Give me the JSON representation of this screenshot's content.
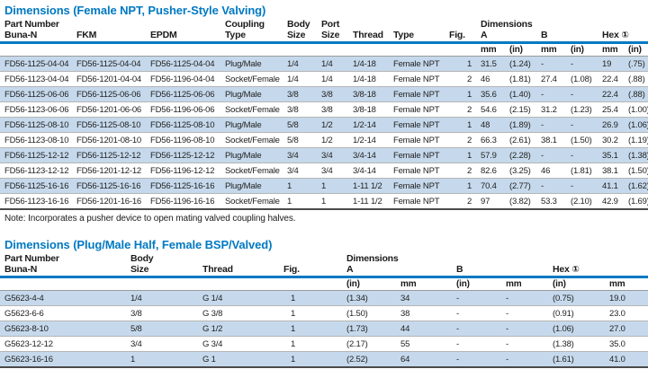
{
  "colors": {
    "accent": "#0079C2",
    "row_stripe": "#C6D9EC"
  },
  "table1": {
    "title": "Dimensions (Female NPT, Pusher-Style Valving)",
    "header_line1": [
      "Part Number",
      "",
      "",
      "Coupling",
      "Body",
      "Port",
      "",
      "",
      "",
      "Dimensions",
      "",
      "",
      "",
      "",
      ""
    ],
    "header_line2": [
      "Buna-N",
      "FKM",
      "EPDM",
      "Type",
      "Size",
      "Size",
      "Thread",
      "Type",
      "Fig.",
      "A",
      "",
      "B",
      "",
      "Hex",
      ""
    ],
    "hex_marker": "①",
    "units": [
      "mm",
      "(in)",
      "mm",
      "(in)",
      "mm",
      "(in)"
    ],
    "rows": [
      [
        "FD56-1125-04-04",
        "FD56-1125-04-04",
        "FD56-1125-04-04",
        "Plug/Male",
        "1/4",
        "1/4",
        "1/4-18",
        "Female NPT",
        "1",
        "31.5",
        "(1.24)",
        "-",
        "-",
        "19",
        "(.75)"
      ],
      [
        "FD56-1123-04-04",
        "FD56-1201-04-04",
        "FD56-1196-04-04",
        "Socket/Female",
        "1/4",
        "1/4",
        "1/4-18",
        "Female NPT",
        "2",
        "46",
        "(1.81)",
        "27.4",
        "(1.08)",
        "22.4",
        "(.88)"
      ],
      [
        "FD56-1125-06-06",
        "FD56-1125-06-06",
        "FD56-1125-06-06",
        "Plug/Male",
        "3/8",
        "3/8",
        "3/8-18",
        "Female NPT",
        "1",
        "35.6",
        "(1.40)",
        "-",
        "-",
        "22.4",
        "(.88)"
      ],
      [
        "FD56-1123-06-06",
        "FD56-1201-06-06",
        "FD56-1196-06-06",
        "Socket/Female",
        "3/8",
        "3/8",
        "3/8-18",
        "Female NPT",
        "2",
        "54.6",
        "(2.15)",
        "31.2",
        "(1.23)",
        "25.4",
        "(1.00)"
      ],
      [
        "FD56-1125-08-10",
        "FD56-1125-08-10",
        "FD56-1125-08-10",
        "Plug/Male",
        "5/8",
        "1/2",
        "1/2-14",
        "Female NPT",
        "1",
        "48",
        "(1.89)",
        "-",
        "-",
        "26.9",
        "(1.06)"
      ],
      [
        "FD56-1123-08-10",
        "FD56-1201-08-10",
        "FD56-1196-08-10",
        "Socket/Female",
        "5/8",
        "1/2",
        "1/2-14",
        "Female NPT",
        "2",
        "66.3",
        "(2.61)",
        "38.1",
        "(1.50)",
        "30.2",
        "(1.19)"
      ],
      [
        "FD56-1125-12-12",
        "FD56-1125-12-12",
        "FD56-1125-12-12",
        "Plug/Male",
        "3/4",
        "3/4",
        "3/4-14",
        "Female NPT",
        "1",
        "57.9",
        "(2.28)",
        "-",
        "-",
        "35.1",
        "(1.38)"
      ],
      [
        "FD56-1123-12-12",
        "FD56-1201-12-12",
        "FD56-1196-12-12",
        "Socket/Female",
        "3/4",
        "3/4",
        "3/4-14",
        "Female NPT",
        "2",
        "82.6",
        "(3.25)",
        "46",
        "(1.81)",
        "38.1",
        "(1.50)"
      ],
      [
        "FD56-1125-16-16",
        "FD56-1125-16-16",
        "FD56-1125-16-16",
        "Plug/Male",
        "1",
        "1",
        "1-11 1/2",
        "Female NPT",
        "1",
        "70.4",
        "(2.77)",
        "-",
        "-",
        "41.1",
        "(1.62)"
      ],
      [
        "FD56-1123-16-16",
        "FD56-1201-16-16",
        "FD56-1196-16-16",
        "Socket/Female",
        "1",
        "1",
        "1-11 1/2",
        "Female NPT",
        "2",
        "97",
        "(3.82)",
        "53.3",
        "(2.10)",
        "42.9",
        "(1.69)"
      ]
    ],
    "note": "Note: Incorporates a pusher device to open mating valved coupling halves."
  },
  "table2": {
    "title": "Dimensions (Plug/Male Half, Female BSP/Valved)",
    "header_line1": [
      "Part Number",
      "Body",
      "",
      "",
      "Dimensions",
      "",
      "",
      "",
      "",
      ""
    ],
    "header_line2": [
      "Buna-N",
      "Size",
      "Thread",
      "Fig.",
      "A",
      "",
      "B",
      "",
      "Hex",
      ""
    ],
    "hex_marker": "①",
    "units": [
      "(in)",
      "mm",
      "(in)",
      "mm",
      "(in)",
      "mm"
    ],
    "rows": [
      [
        "G5623-4-4",
        "1/4",
        "G 1/4",
        "1",
        "(1.34)",
        "34",
        "-",
        "-",
        "(0.75)",
        "19.0"
      ],
      [
        "G5623-6-6",
        "3/8",
        "G 3/8",
        "1",
        "(1.50)",
        "38",
        "-",
        "-",
        "(0.91)",
        "23.0"
      ],
      [
        "G5623-8-10",
        "5/8",
        "G 1/2",
        "1",
        "(1.73)",
        "44",
        "-",
        "-",
        "(1.06)",
        "27.0"
      ],
      [
        "G5623-12-12",
        "3/4",
        "G 3/4",
        "1",
        "(2.17)",
        "55",
        "-",
        "-",
        "(1.38)",
        "35.0"
      ],
      [
        "G5623-16-16",
        "1",
        "G 1",
        "1",
        "(2.52)",
        "64",
        "-",
        "-",
        "(1.61)",
        "41.0"
      ]
    ]
  }
}
